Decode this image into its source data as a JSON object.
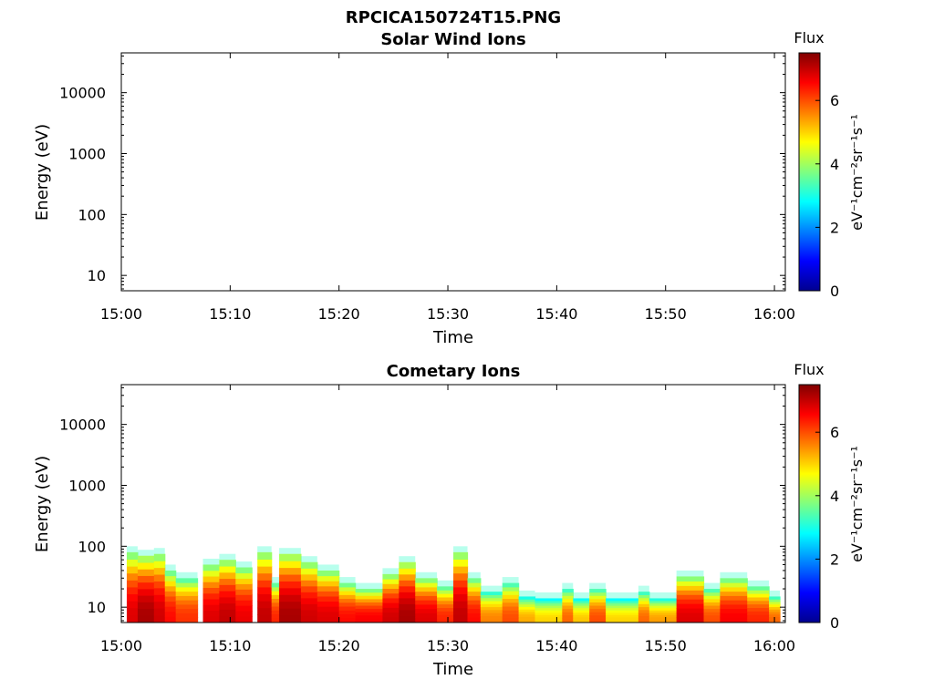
{
  "figure": {
    "filename": "RPCICA150724T15.PNG"
  },
  "chart_data": [
    {
      "type": "heatmap",
      "title": "Solar Wind Ions",
      "xlabel": "Time",
      "ylabel": "Energy (eV)",
      "x_ticks": [
        "15:00",
        "15:10",
        "15:20",
        "15:30",
        "15:40",
        "15:50",
        "16:00"
      ],
      "x_range_minutes": [
        0,
        61
      ],
      "y_scale": "log",
      "y_range": [
        5.6,
        45000
      ],
      "y_ticks": [
        10,
        100,
        1000,
        10000
      ],
      "y_tick_labels": [
        "10",
        "100",
        "1000",
        "10000"
      ],
      "colorbar": {
        "title": "Flux",
        "label": "eV⁻¹cm⁻²sr⁻¹s⁻¹",
        "range": [
          0,
          7.5
        ],
        "ticks": [
          0,
          2,
          4,
          6
        ],
        "colormap": "jet"
      },
      "bursts": []
    },
    {
      "type": "heatmap",
      "title": "Cometary Ions",
      "xlabel": "Time",
      "ylabel": "Energy (eV)",
      "x_ticks": [
        "15:00",
        "15:10",
        "15:20",
        "15:30",
        "15:40",
        "15:50",
        "16:00"
      ],
      "x_range_minutes": [
        0,
        61
      ],
      "y_scale": "log",
      "y_range": [
        5.6,
        45000
      ],
      "y_ticks": [
        10,
        100,
        1000,
        10000
      ],
      "y_tick_labels": [
        "10",
        "100",
        "1000",
        "10000"
      ],
      "colorbar": {
        "title": "Flux",
        "label": "eV⁻¹cm⁻²sr⁻¹s⁻¹",
        "range": [
          0,
          7.5
        ],
        "ticks": [
          0,
          2,
          4,
          6
        ],
        "colormap": "jet"
      },
      "bursts": [
        {
          "t0": 0.5,
          "t1": 1.5,
          "e_max": 80,
          "flux": 6.8
        },
        {
          "t0": 1.5,
          "t1": 3.0,
          "e_max": 70,
          "flux": 7.2
        },
        {
          "t0": 3.0,
          "t1": 4.0,
          "e_max": 75,
          "flux": 6.9
        },
        {
          "t0": 4.0,
          "t1": 5.0,
          "e_max": 40,
          "flux": 6.5
        },
        {
          "t0": 5.0,
          "t1": 7.0,
          "e_max": 30,
          "flux": 6.2
        },
        {
          "t0": 7.5,
          "t1": 9.0,
          "e_max": 50,
          "flux": 6.8
        },
        {
          "t0": 9.0,
          "t1": 10.5,
          "e_max": 60,
          "flux": 7.0
        },
        {
          "t0": 10.5,
          "t1": 12.0,
          "e_max": 45,
          "flux": 6.7
        },
        {
          "t0": 12.5,
          "t1": 13.8,
          "e_max": 80,
          "flux": 7.0
        },
        {
          "t0": 13.8,
          "t1": 14.5,
          "e_max": 25,
          "flux": 6.3
        },
        {
          "t0": 14.5,
          "t1": 16.5,
          "e_max": 75,
          "flux": 7.2
        },
        {
          "t0": 16.5,
          "t1": 18.0,
          "e_max": 55,
          "flux": 6.9
        },
        {
          "t0": 18.0,
          "t1": 20.0,
          "e_max": 40,
          "flux": 6.8
        },
        {
          "t0": 20.0,
          "t1": 21.5,
          "e_max": 25,
          "flux": 6.5
        },
        {
          "t0": 21.5,
          "t1": 24.0,
          "e_max": 20,
          "flux": 6.6
        },
        {
          "t0": 24.0,
          "t1": 25.5,
          "e_max": 35,
          "flux": 6.9
        },
        {
          "t0": 25.5,
          "t1": 27.0,
          "e_max": 55,
          "flux": 7.2
        },
        {
          "t0": 27.0,
          "t1": 29.0,
          "e_max": 30,
          "flux": 6.8
        },
        {
          "t0": 29.0,
          "t1": 30.5,
          "e_max": 22,
          "flux": 6.3
        },
        {
          "t0": 30.5,
          "t1": 31.8,
          "e_max": 80,
          "flux": 7.0
        },
        {
          "t0": 31.8,
          "t1": 33.0,
          "e_max": 30,
          "flux": 6.5
        },
        {
          "t0": 33.0,
          "t1": 35.0,
          "e_max": 18,
          "flux": 5.6
        },
        {
          "t0": 35.0,
          "t1": 36.5,
          "e_max": 25,
          "flux": 6.0
        },
        {
          "t0": 36.5,
          "t1": 38.0,
          "e_max": 15,
          "flux": 5.3
        },
        {
          "t0": 38.0,
          "t1": 40.5,
          "e_max": 14,
          "flux": 5.0
        },
        {
          "t0": 40.5,
          "t1": 41.5,
          "e_max": 20,
          "flux": 5.8
        },
        {
          "t0": 41.5,
          "t1": 43.0,
          "e_max": 14,
          "flux": 5.1
        },
        {
          "t0": 43.0,
          "t1": 44.5,
          "e_max": 20,
          "flux": 6.0
        },
        {
          "t0": 44.5,
          "t1": 47.5,
          "e_max": 14,
          "flux": 5.0
        },
        {
          "t0": 47.5,
          "t1": 48.5,
          "e_max": 18,
          "flux": 5.8
        },
        {
          "t0": 48.5,
          "t1": 51.0,
          "e_max": 14,
          "flux": 5.4
        },
        {
          "t0": 51.0,
          "t1": 53.5,
          "e_max": 32,
          "flux": 6.8
        },
        {
          "t0": 53.5,
          "t1": 55.0,
          "e_max": 20,
          "flux": 6.0
        },
        {
          "t0": 55.0,
          "t1": 57.5,
          "e_max": 30,
          "flux": 6.6
        },
        {
          "t0": 57.5,
          "t1": 59.5,
          "e_max": 22,
          "flux": 6.3
        },
        {
          "t0": 59.5,
          "t1": 60.5,
          "e_max": 15,
          "flux": 5.8
        }
      ]
    }
  ]
}
